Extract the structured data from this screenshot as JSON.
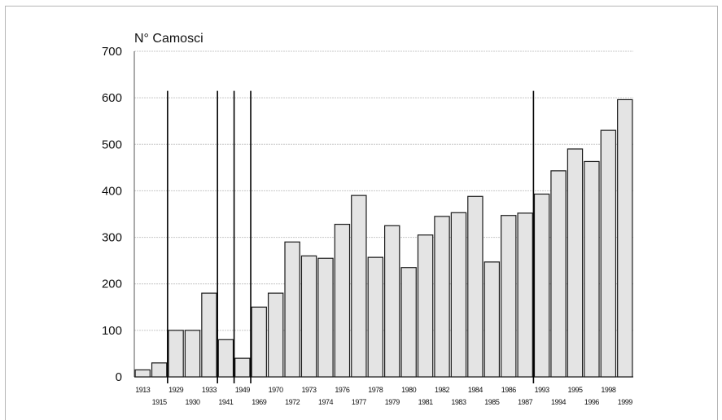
{
  "chart_data": {
    "type": "bar",
    "ylabel": "N° Camosci",
    "ylim": [
      0,
      700
    ],
    "yticks": [
      "0",
      "100",
      "200",
      "300",
      "400",
      "500",
      "600",
      "700"
    ],
    "grid": true,
    "categories": [
      "1913",
      "1915",
      "1929",
      "1930",
      "1933",
      "1941",
      "1949",
      "1969",
      "1970",
      "1972",
      "1973",
      "1974",
      "1976",
      "1977",
      "1978",
      "1979",
      "1980",
      "1981",
      "1982",
      "1983",
      "1984",
      "1985",
      "1986",
      "1987",
      "1993",
      "1994",
      "1995",
      "1996",
      "1998",
      "1999"
    ],
    "values": [
      15,
      30,
      100,
      100,
      180,
      80,
      40,
      150,
      180,
      290,
      260,
      255,
      328,
      390,
      257,
      325,
      235,
      305,
      345,
      353,
      388,
      247,
      347,
      352,
      393,
      443,
      490,
      463,
      530,
      596
    ],
    "bar_color": "#e4e4e4",
    "break_lines_after": [
      "1915",
      "1933",
      "1941",
      "1949",
      "1987"
    ]
  }
}
